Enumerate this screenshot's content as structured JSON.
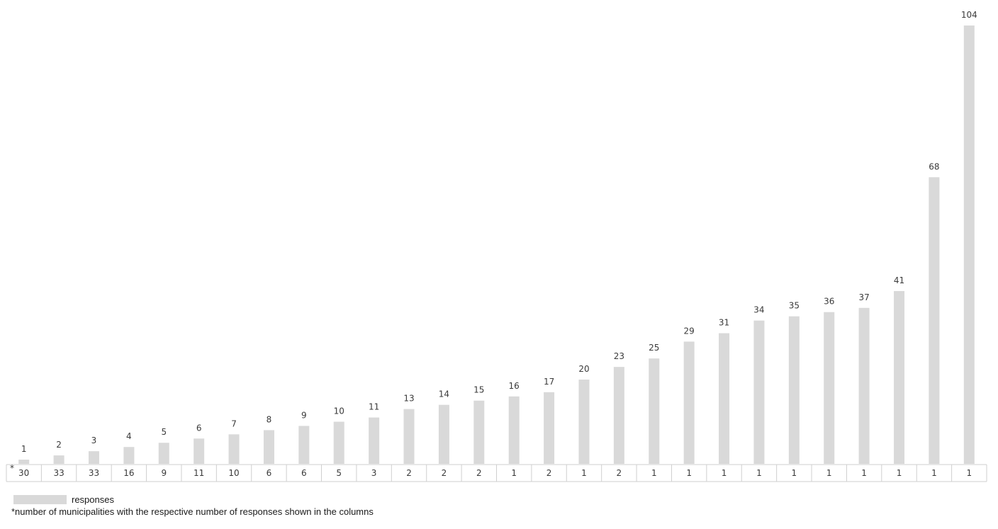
{
  "chart_data": {
    "type": "bar",
    "categories": [
      "30",
      "33",
      "33",
      "16",
      "9",
      "11",
      "10",
      "6",
      "6",
      "5",
      "3",
      "2",
      "2",
      "2",
      "1",
      "2",
      "1",
      "2",
      "1",
      "1",
      "1",
      "1",
      "1",
      "1",
      "1",
      "1",
      "1",
      "1"
    ],
    "values": [
      1,
      2,
      3,
      4,
      5,
      6,
      7,
      8,
      9,
      10,
      11,
      13,
      14,
      15,
      16,
      17,
      20,
      23,
      25,
      29,
      31,
      34,
      35,
      36,
      37,
      41,
      68,
      104
    ],
    "ylim": [
      0,
      104
    ],
    "table_marker": "*",
    "grid": false,
    "legend": {
      "label": "responses",
      "color": "#d9d9d9",
      "placement": "bottom-left"
    },
    "footnote": "*number of municipalities with the respective number of responses shown in the columns",
    "bar_color": "#d9d9d9"
  }
}
